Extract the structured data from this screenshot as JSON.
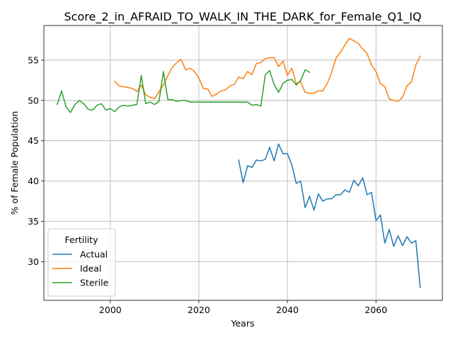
{
  "chart_data": {
    "type": "line",
    "title": "Score_2_in_AFRAID_TO_WALK_IN_THE_DARK_for_Female_Q1_IQ",
    "xlabel": "Years",
    "ylabel": "% of Female Population",
    "xlim": [
      1985,
      2075
    ],
    "ylim": [
      25.2,
      59.3
    ],
    "x_ticks": [
      2000,
      2020,
      2040,
      2060
    ],
    "y_ticks": [
      30,
      35,
      40,
      45,
      50,
      55
    ],
    "grid": true,
    "legend": {
      "title": "Fertility",
      "placement": "lower-left"
    },
    "series": [
      {
        "name": "Actual",
        "color": "#1f77b4",
        "x": [
          2029,
          2030,
          2031,
          2032,
          2033,
          2034,
          2035,
          2036,
          2037,
          2038,
          2039,
          2040,
          2041,
          2042,
          2043,
          2044,
          2045,
          2046,
          2047,
          2048,
          2049,
          2050,
          2051,
          2052,
          2053,
          2054,
          2055,
          2056,
          2057,
          2058,
          2059,
          2060,
          2061,
          2062,
          2063,
          2064,
          2065,
          2066,
          2067,
          2068,
          2069,
          2070
        ],
        "values": [
          42.6,
          39.8,
          41.9,
          41.7,
          42.6,
          42.5,
          42.7,
          44.2,
          42.5,
          44.6,
          43.4,
          43.4,
          42.0,
          39.7,
          40.0,
          36.7,
          38.1,
          36.4,
          38.4,
          37.5,
          37.8,
          37.8,
          38.3,
          38.3,
          38.9,
          38.6,
          40.1,
          39.4,
          40.4,
          38.3,
          38.6,
          35.1,
          35.8,
          32.3,
          34.0,
          31.9,
          33.2,
          32.0,
          33.1,
          32.3,
          32.6,
          26.8
        ]
      },
      {
        "name": "Ideal",
        "color": "#ff7f0e",
        "x": [
          2001,
          2002,
          2003,
          2004,
          2005,
          2006,
          2007,
          2008,
          2009,
          2010,
          2011,
          2012,
          2013,
          2014,
          2015,
          2016,
          2017,
          2018,
          2019,
          2020,
          2021,
          2022,
          2023,
          2024,
          2025,
          2026,
          2027,
          2028,
          2029,
          2030,
          2031,
          2032,
          2033,
          2034,
          2035,
          2036,
          2037,
          2038,
          2039,
          2040,
          2041,
          2042,
          2043,
          2044,
          2045,
          2046,
          2047,
          2048,
          2049,
          2050,
          2051,
          2052,
          2053,
          2054,
          2055,
          2056,
          2057,
          2058,
          2059,
          2060,
          2061,
          2062,
          2063,
          2064,
          2065,
          2066,
          2067,
          2068,
          2069,
          2070
        ],
        "values": [
          52.4,
          51.8,
          51.7,
          51.6,
          51.5,
          51.1,
          51.9,
          50.7,
          50.4,
          50.2,
          51.1,
          51.9,
          53.1,
          54.1,
          54.7,
          55.1,
          53.8,
          54.0,
          53.6,
          52.8,
          51.5,
          51.4,
          50.5,
          50.8,
          51.2,
          51.3,
          51.8,
          52.0,
          52.9,
          52.7,
          53.6,
          53.2,
          54.6,
          54.7,
          55.2,
          55.3,
          55.3,
          54.2,
          54.9,
          53.1,
          54.0,
          52.1,
          52.3,
          51.0,
          50.9,
          50.9,
          51.2,
          51.2,
          52.1,
          53.5,
          55.3,
          56.0,
          56.9,
          57.7,
          57.4,
          57.1,
          56.4,
          55.8,
          54.4,
          53.6,
          52.1,
          51.7,
          50.2,
          50.0,
          49.9,
          50.4,
          51.8,
          52.3,
          54.4,
          55.5
        ]
      },
      {
        "name": "Sterile",
        "color": "#2ca02c",
        "x": [
          1988,
          1989,
          1990,
          1991,
          1992,
          1993,
          1994,
          1995,
          1996,
          1997,
          1998,
          1999,
          2000,
          2001,
          2002,
          2003,
          2004,
          2005,
          2006,
          2007,
          2008,
          2009,
          2010,
          2011,
          2012,
          2013,
          2014,
          2015,
          2016,
          2017,
          2018,
          2019,
          2020,
          2021,
          2022,
          2023,
          2024,
          2025,
          2026,
          2027,
          2028,
          2029,
          2030,
          2031,
          2032,
          2033,
          2034,
          2035,
          2036,
          2037,
          2038,
          2039,
          2040,
          2041,
          2042,
          2043,
          2044,
          2045
        ],
        "values": [
          49.5,
          51.2,
          49.2,
          48.5,
          49.5,
          50.0,
          49.6,
          48.9,
          48.8,
          49.4,
          49.6,
          48.8,
          49.0,
          48.6,
          49.2,
          49.4,
          49.3,
          49.4,
          49.5,
          53.1,
          49.6,
          49.8,
          49.5,
          49.9,
          53.6,
          50.1,
          50.1,
          49.9,
          50.0,
          50.0,
          49.8,
          49.8,
          49.8,
          49.8,
          49.8,
          49.8,
          49.8,
          49.8,
          49.8,
          49.8,
          49.8,
          49.8,
          49.8,
          49.8,
          49.4,
          49.5,
          49.3,
          53.2,
          53.7,
          52.0,
          51.0,
          52.1,
          52.5,
          52.6,
          51.9,
          52.5,
          53.8,
          53.5
        ]
      }
    ]
  }
}
